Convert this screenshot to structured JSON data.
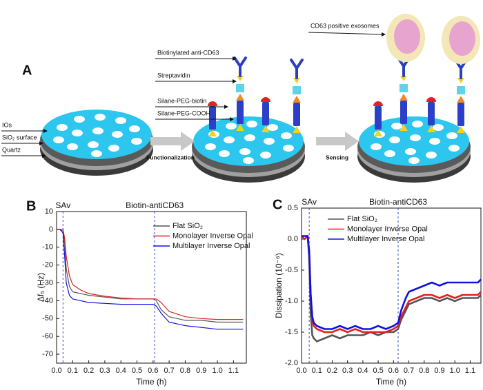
{
  "panel_a": {
    "label": "A",
    "layers": [
      "IOs",
      "SiO₂ surface",
      "Quartz"
    ],
    "steps": [
      "Functionalization",
      "Sensing"
    ],
    "molecules": [
      "Biotinylated anti-CD63",
      "Streptavidin",
      "Silane-PEG-biotin",
      "Silane-PEG-COOH"
    ],
    "exosomes": "CD63 positive exosomes"
  },
  "chart_data": [
    {
      "type": "line",
      "label": "B",
      "x_label": "Time (h)",
      "y_label": "Δf₅ (Hz)",
      "xlim": [
        0,
        1.18
      ],
      "xticks": [
        {
          "value": 0,
          "label": "0.0"
        },
        0.1,
        0.2,
        0.3,
        0.4,
        0.5,
        0.6,
        0.7,
        0.8,
        0.9,
        {
          "value": 1,
          "label": "1.0"
        },
        1.1
      ],
      "ylim": [
        -75,
        10
      ],
      "yticks": [
        10,
        0,
        -10,
        -20,
        -30,
        -40,
        -50,
        -60,
        -70
      ],
      "annotations": [
        {
          "text": "SAv",
          "x": 0.04
        },
        {
          "text": "Biotin-antiCD63",
          "x": 0.61
        }
      ],
      "legend": "upper right",
      "x": [
        0,
        0.02,
        0.04,
        0.05,
        0.06,
        0.08,
        0.1,
        0.15,
        0.2,
        0.3,
        0.4,
        0.5,
        0.6,
        0.62,
        0.65,
        0.7,
        0.8,
        0.9,
        1.0,
        1.1,
        1.16
      ],
      "series": [
        {
          "name": "Flat SiO₂",
          "color": "#555555",
          "values": [
            0,
            0,
            -1,
            -8,
            -22,
            -32,
            -35,
            -36,
            -37,
            -38,
            -39,
            -39,
            -39,
            -40,
            -45,
            -49,
            -51,
            -51,
            -52,
            -52,
            -52
          ]
        },
        {
          "name": "Monolayer Inverse Opal",
          "color": "#e02020",
          "values": [
            0,
            0,
            0,
            -5,
            -15,
            -26,
            -31,
            -34,
            -36,
            -37.5,
            -38.5,
            -39,
            -39,
            -39,
            -41,
            -46,
            -49,
            -50,
            -50.5,
            -50.5,
            -50.5
          ]
        },
        {
          "name": "Multilayer Inverse Opal",
          "color": "#1010e0",
          "values": [
            0,
            0,
            -2,
            -15,
            -30,
            -37,
            -39,
            -40,
            -41,
            -41.5,
            -42,
            -42,
            -42,
            -43,
            -47,
            -52,
            -54,
            -55,
            -56,
            -56,
            -56
          ]
        }
      ]
    },
    {
      "type": "line",
      "label": "C",
      "x_label": "Time (h)",
      "y_label": "Dissipation (10⁻⁶)",
      "xlim": [
        0,
        1.17
      ],
      "xticks": [
        {
          "value": 0,
          "label": "0.0"
        },
        0.1,
        0.2,
        0.3,
        0.4,
        0.5,
        0.6,
        0.7,
        0.8,
        0.9,
        {
          "value": 1,
          "label": "1.0"
        },
        1.1
      ],
      "ylim": [
        -2,
        0.5
      ],
      "yticks": [
        0.5,
        {
          "value": 0,
          "label": "0.0"
        },
        -0.5,
        {
          "value": -1,
          "label": "-1.0"
        },
        -1.5,
        {
          "value": -2,
          "label": "-2.0"
        }
      ],
      "annotations": [
        {
          "text": "SAv",
          "x": 0.05
        },
        {
          "text": "Biotin-antiCD63",
          "x": 0.63
        }
      ],
      "legend": "upper left",
      "x": [
        0,
        0.02,
        0.04,
        0.05,
        0.06,
        0.07,
        0.08,
        0.1,
        0.15,
        0.2,
        0.25,
        0.3,
        0.35,
        0.4,
        0.45,
        0.5,
        0.55,
        0.6,
        0.63,
        0.65,
        0.68,
        0.7,
        0.75,
        0.8,
        0.85,
        0.9,
        0.95,
        1.0,
        1.05,
        1.1,
        1.15,
        1.17
      ],
      "series": [
        {
          "name": "Flat SiO₂",
          "color": "#555555",
          "values": [
            0.05,
            0,
            0.05,
            -0.3,
            -1.2,
            -1.55,
            -1.6,
            -1.65,
            -1.6,
            -1.55,
            -1.6,
            -1.55,
            -1.55,
            -1.55,
            -1.5,
            -1.55,
            -1.5,
            -1.5,
            -1.45,
            -1.3,
            -1.15,
            -1.05,
            -1,
            -0.95,
            -0.95,
            -1,
            -0.95,
            -1,
            -0.95,
            -0.95,
            -0.95,
            -0.9
          ]
        },
        {
          "name": "Monolayer Inverse Opal",
          "color": "#e02020",
          "values": [
            0.05,
            0,
            0.05,
            -0.2,
            -0.9,
            -1.3,
            -1.4,
            -1.45,
            -1.5,
            -1.5,
            -1.45,
            -1.5,
            -1.45,
            -1.5,
            -1.5,
            -1.5,
            -1.5,
            -1.45,
            -1.4,
            -1.25,
            -1.1,
            -1,
            -0.95,
            -0.9,
            -0.9,
            -0.95,
            -0.9,
            -0.95,
            -0.9,
            -0.9,
            -0.9,
            -0.85
          ]
        },
        {
          "name": "Multilayer Inverse Opal",
          "color": "#1010e0",
          "values": [
            0.05,
            0.05,
            0.05,
            -0.2,
            -0.9,
            -1.25,
            -1.35,
            -1.4,
            -1.45,
            -1.45,
            -1.4,
            -1.45,
            -1.4,
            -1.45,
            -1.45,
            -1.4,
            -1.45,
            -1.4,
            -1.35,
            -1.15,
            -0.95,
            -0.85,
            -0.8,
            -0.75,
            -0.7,
            -0.75,
            -0.7,
            -0.7,
            -0.7,
            -0.7,
            -0.7,
            -0.65
          ]
        }
      ]
    }
  ]
}
